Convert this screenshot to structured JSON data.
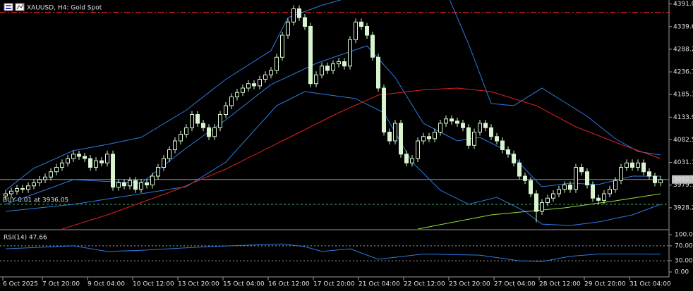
{
  "chart_data": {
    "type": "candlestick",
    "title": "XAUUSD, H4:  Gold Spot",
    "ylim": [
      3880,
      4400
    ],
    "yticks": [
      {
        "value": 4391.0,
        "label": "4391.0"
      },
      {
        "value": 4339.6,
        "label": "4339.6"
      },
      {
        "value": 4288.2,
        "label": "4288.2"
      },
      {
        "value": 4236.7,
        "label": "4236.7"
      },
      {
        "value": 4185.3,
        "label": "4185.3"
      },
      {
        "value": 4133.9,
        "label": "4133.9"
      },
      {
        "value": 4082.5,
        "label": "4082.5"
      },
      {
        "value": 4031.1,
        "label": "4031.1"
      },
      {
        "value": 3979.7,
        "label": "3979.7"
      },
      {
        "value": 3928.2,
        "label": "3928.2"
      }
    ],
    "xticks": [
      {
        "value": 0,
        "label": "6 Oct 2025"
      },
      {
        "value": 7,
        "label": "7 Oct 20:00"
      },
      {
        "value": 15,
        "label": "9 Oct 04:00"
      },
      {
        "value": 23,
        "label": "10 Oct 12:00"
      },
      {
        "value": 31,
        "label": "13 Oct 20:00"
      },
      {
        "value": 39,
        "label": "15 Oct 04:00"
      },
      {
        "value": 47,
        "label": "16 Oct 12:00"
      },
      {
        "value": 55,
        "label": "17 Oct 20:00"
      },
      {
        "value": 63,
        "label": "21 Oct 04:00"
      },
      {
        "value": 71,
        "label": "22 Oct 12:00"
      },
      {
        "value": 79,
        "label": "23 Oct 20:00"
      },
      {
        "value": 87,
        "label": "27 Oct 04:00"
      },
      {
        "value": 95,
        "label": "28 Oct 12:00"
      },
      {
        "value": 103,
        "label": "29 Oct 20:00"
      },
      {
        "value": 111,
        "label": "31 Oct 04:00"
      }
    ],
    "bull_color": "#000000",
    "bear_color": "#d8f5d0",
    "outline_color": "#d8f5d0",
    "open": [
      3955,
      3960,
      3966,
      3972,
      3970,
      3978,
      3985,
      3992,
      3998,
      4010,
      4020,
      4030,
      4040,
      4050,
      4045,
      4040,
      4020,
      4035,
      4030,
      4050,
      3975,
      3985,
      3978,
      3990,
      3970,
      3985,
      3980,
      4000,
      4020,
      4040,
      4060,
      4080,
      4095,
      4110,
      4140,
      4120,
      4110,
      4090,
      4110,
      4140,
      4160,
      4180,
      4190,
      4200,
      4210,
      4205,
      4220,
      4230,
      4240,
      4270,
      4320,
      4350,
      4380,
      4360,
      4340,
      4210,
      4230,
      4250,
      4240,
      4255,
      4260,
      4250,
      4310,
      4350,
      4340,
      4320,
      4270,
      4200,
      4100,
      4080,
      4120,
      4050,
      4030,
      4040,
      4080,
      4090,
      4085,
      4100,
      4120,
      4130,
      4125,
      4120,
      4110,
      4070,
      4100,
      4120,
      4110,
      4090,
      4080,
      4060,
      4050,
      4030,
      4000,
      3990,
      3960,
      3920,
      3940,
      3950,
      3960,
      3970,
      3980,
      3970,
      4020,
      4010,
      3980,
      3950,
      3945,
      3960,
      3970,
      3990,
      4020,
      4030,
      4020,
      4030,
      4010,
      4000,
      3985
    ],
    "high": [
      3968,
      3974,
      3980,
      3980,
      3986,
      3993,
      4000,
      4006,
      4018,
      4028,
      4038,
      4048,
      4058,
      4058,
      4053,
      4048,
      4043,
      4043,
      4058,
      4058,
      3993,
      3993,
      3998,
      3998,
      3993,
      3993,
      4008,
      4028,
      4048,
      4068,
      4088,
      4103,
      4118,
      4148,
      4148,
      4128,
      4118,
      4118,
      4148,
      4168,
      4188,
      4198,
      4208,
      4218,
      4218,
      4228,
      4238,
      4248,
      4278,
      4328,
      4358,
      4388,
      4388,
      4368,
      4348,
      4238,
      4258,
      4258,
      4263,
      4268,
      4268,
      4318,
      4358,
      4358,
      4348,
      4328,
      4278,
      4208,
      4108,
      4128,
      4128,
      4058,
      4048,
      4088,
      4098,
      4098,
      4108,
      4128,
      4138,
      4138,
      4133,
      4128,
      4118,
      4108,
      4128,
      4128,
      4118,
      4098,
      4088,
      4068,
      4058,
      4038,
      4008,
      3998,
      3968,
      3948,
      3958,
      3968,
      3978,
      3988,
      3988,
      4028,
      4028,
      4018,
      3988,
      3958,
      3968,
      3978,
      3998,
      4028,
      4038,
      4038,
      4038,
      4038,
      4018,
      4008,
      4000
    ],
    "low": [
      3947,
      3952,
      3958,
      3962,
      3962,
      3970,
      3977,
      3984,
      3990,
      4002,
      4012,
      4022,
      4032,
      4037,
      4032,
      4012,
      4012,
      4022,
      4022,
      3967,
      3967,
      3970,
      3970,
      3962,
      3962,
      3972,
      3972,
      3992,
      4012,
      4032,
      4052,
      4072,
      4087,
      4102,
      4112,
      4102,
      4082,
      4082,
      4102,
      4132,
      4152,
      4172,
      4182,
      4192,
      4197,
      4197,
      4212,
      4222,
      4232,
      4262,
      4312,
      4342,
      4352,
      4332,
      4202,
      4202,
      4222,
      4232,
      4232,
      4247,
      4242,
      4242,
      4302,
      4332,
      4312,
      4262,
      4192,
      4092,
      4072,
      4072,
      4042,
      4022,
      4022,
      4032,
      4072,
      4077,
      4077,
      4092,
      4112,
      4117,
      4112,
      4102,
      4062,
      4062,
      4092,
      4102,
      4082,
      4072,
      4052,
      4042,
      4022,
      3992,
      3982,
      3952,
      3895,
      3912,
      3932,
      3942,
      3952,
      3962,
      3962,
      3962,
      4002,
      3972,
      3942,
      3937,
      3937,
      3952,
      3962,
      3982,
      4012,
      4012,
      4012,
      4002,
      3992,
      3977,
      3977
    ],
    "close": [
      3960,
      3966,
      3972,
      3970,
      3978,
      3985,
      3992,
      3998,
      4010,
      4020,
      4030,
      4040,
      4050,
      4045,
      4040,
      4020,
      4035,
      4030,
      4050,
      3975,
      3985,
      3978,
      3990,
      3970,
      3985,
      3980,
      4000,
      4020,
      4040,
      4060,
      4080,
      4095,
      4110,
      4140,
      4120,
      4110,
      4090,
      4110,
      4140,
      4160,
      4180,
      4190,
      4200,
      4210,
      4205,
      4220,
      4230,
      4240,
      4270,
      4320,
      4350,
      4380,
      4360,
      4340,
      4210,
      4230,
      4250,
      4240,
      4255,
      4260,
      4250,
      4310,
      4350,
      4340,
      4320,
      4270,
      4200,
      4100,
      4080,
      4120,
      4050,
      4030,
      4040,
      4080,
      4090,
      4085,
      4100,
      4120,
      4130,
      4125,
      4120,
      4110,
      4070,
      4100,
      4120,
      4110,
      4090,
      4080,
      4060,
      4050,
      4030,
      4000,
      3990,
      3960,
      3920,
      3940,
      3950,
      3960,
      3970,
      3980,
      3970,
      4020,
      4010,
      3980,
      3950,
      3945,
      3960,
      3970,
      3990,
      4020,
      4030,
      4020,
      4030,
      4010,
      4000,
      3985,
      3992
    ],
    "indicators": [
      {
        "color": "#2f7be0",
        "x": [
          0,
          5,
          12,
          18,
          24,
          32,
          39,
          47,
          50,
          56,
          62,
          70,
          78,
          82,
          86,
          90,
          95,
          99,
          103,
          108,
          112,
          116
        ],
        "values": [
          3968,
          4018,
          4058,
          4072,
          4088,
          4150,
          4220,
          4285,
          4360,
          4388,
          4410,
          4440,
          4420,
          4300,
          4165,
          4160,
          4200,
          4168,
          4136,
          4085,
          4056,
          4048
        ]
      },
      {
        "color": "#2f7be0",
        "x": [
          0,
          12,
          24,
          32,
          39,
          47,
          55,
          64,
          69,
          74,
          80,
          84,
          89,
          95,
          100,
          105,
          111,
          116
        ],
        "values": [
          3936,
          3992,
          3984,
          4064,
          4128,
          4208,
          4256,
          4296,
          4224,
          4120,
          4080,
          4088,
          4056,
          3976,
          3984,
          3981,
          4000,
          4000
        ]
      },
      {
        "color": "#2f7be0",
        "x": [
          0,
          12,
          24,
          32,
          39,
          48,
          53,
          62,
          67,
          72,
          77,
          82,
          87,
          92,
          95,
          100,
          105,
          111,
          116
        ],
        "values": [
          3920,
          3936,
          3960,
          3976,
          4032,
          4160,
          4192,
          4176,
          4144,
          4032,
          3968,
          3936,
          3952,
          3920,
          3891,
          3888,
          3896,
          3912,
          3936
        ]
      },
      {
        "color": "#e02020",
        "x": [
          10,
          18,
          30,
          39,
          49,
          59,
          66,
          74,
          80,
          86,
          94,
          101,
          109,
          116
        ],
        "values": [
          3880,
          3912,
          3968,
          4016,
          4080,
          4144,
          4184,
          4196,
          4200,
          4192,
          4160,
          4112,
          4072,
          4040
        ]
      },
      {
        "color": "#9ae040",
        "x": [
          73,
          86,
          99,
          108,
          116
        ],
        "values": [
          3880,
          3912,
          3928,
          3944,
          3960
        ]
      }
    ],
    "current_price": 3992.5,
    "trade_line": {
      "value": 3936.05,
      "label": "BUY 0.01 at 3936.05",
      "color": "#3cb371"
    },
    "top_line": {
      "value": 4372,
      "color": "#d02020"
    },
    "rsi": {
      "label": "RSI(14) 47.66",
      "color": "#2f7be0",
      "ylim": [
        0,
        100
      ],
      "yticks": [
        {
          "value": 100,
          "label": "100.00"
        },
        {
          "value": 70,
          "label": "70.00"
        },
        {
          "value": 30,
          "label": "30.00"
        },
        {
          "value": 0,
          "label": "0.00"
        }
      ],
      "levels": [
        70,
        30
      ],
      "x": [
        0,
        12,
        18,
        24,
        36,
        49,
        53,
        56,
        61,
        66,
        74,
        84,
        91,
        95,
        100,
        105,
        111,
        116
      ],
      "values": [
        62,
        70,
        55,
        58,
        68,
        75,
        68,
        55,
        62,
        34,
        48,
        45,
        30,
        28,
        42,
        48,
        48,
        47.66
      ]
    }
  }
}
